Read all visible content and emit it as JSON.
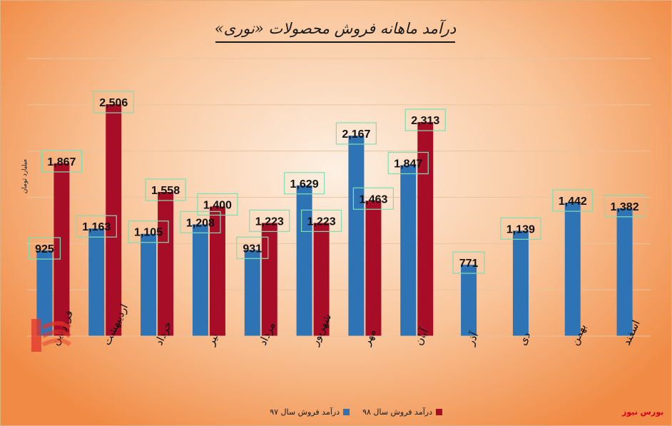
{
  "title": "درآمد ماهانه فروش محصولات «نوری»",
  "unit_label": "میلیارد تومان",
  "watermark": "بورس نیوز",
  "logo_text": "بورس",
  "colors": {
    "series_97": "#2e74b5",
    "series_98": "#a80d27",
    "label_border": "#7fdfb2",
    "grid": "#e8c4a0"
  },
  "legend": {
    "series_97": "درآمد فروش سال ۹۷",
    "series_98": "درآمد فروش سال ۹۸"
  },
  "chart_data": {
    "type": "bar",
    "categories": [
      "فروردین",
      "اردیبهشت",
      "خرداد",
      "تیر",
      "مرداد",
      "شهریور",
      "مهر",
      "آبان",
      "آذر",
      "دی",
      "بهمن",
      "اسفند"
    ],
    "series": [
      {
        "name": "درآمد فروش سال ۹۷",
        "values": [
          925,
          1163,
          1105,
          1208,
          931,
          1629,
          2167,
          1847,
          771,
          1139,
          1442,
          1382
        ]
      },
      {
        "name": "درآمد فروش سال ۹۸",
        "values": [
          1867,
          2506,
          1558,
          1400,
          1223,
          1223,
          1463,
          2313,
          null,
          null,
          null,
          null
        ]
      }
    ],
    "data_labels": {
      "series_97": [
        "925",
        "1,163",
        "1,105",
        "1,208",
        "931",
        "1,629",
        "2,167",
        "1,847",
        "771",
        "1,139",
        "1,442",
        "1,382"
      ],
      "series_98": [
        "1,867",
        "2,506",
        "1,558",
        "1,400",
        "1,223",
        "1,223",
        "1,463",
        "2,313",
        "",
        "",
        "",
        ""
      ]
    },
    "ylim": [
      0,
      3000
    ],
    "grid": true,
    "legend_position": "bottom"
  }
}
